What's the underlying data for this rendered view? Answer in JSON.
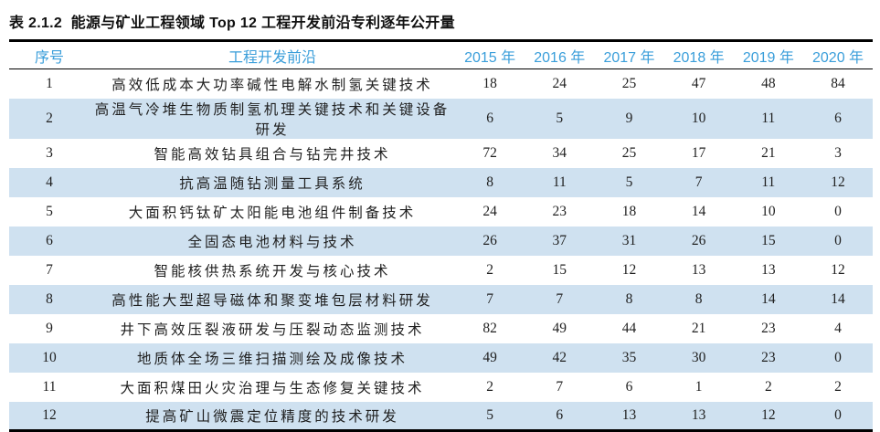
{
  "title": "表 2.1.2  能源与矿业工程领域 Top 12 工程开发前沿专利逐年公开量",
  "colors": {
    "header_text": "#3a9eda",
    "row_alt_bg": "#cfe1f0",
    "border": "#000000",
    "body_text": "#1f1f1f"
  },
  "table": {
    "headers": [
      "序号",
      "工程开发前沿",
      "2015 年",
      "2016 年",
      "2017 年",
      "2018 年",
      "2019 年",
      "2020 年"
    ],
    "rows": [
      {
        "no": "1",
        "frontier": "高效低成本大功率碱性电解水制氢关键技术",
        "values": [
          18,
          24,
          25,
          47,
          48,
          84
        ]
      },
      {
        "no": "2",
        "frontier": "高温气冷堆生物质制氢机理关键技术和关键设备研发",
        "values": [
          6,
          5,
          9,
          10,
          11,
          6
        ]
      },
      {
        "no": "3",
        "frontier": "智能高效钻具组合与钻完井技术",
        "values": [
          72,
          34,
          25,
          17,
          21,
          3
        ]
      },
      {
        "no": "4",
        "frontier": "抗高温随钻测量工具系统",
        "values": [
          8,
          11,
          5,
          7,
          11,
          12
        ]
      },
      {
        "no": "5",
        "frontier": "大面积钙钛矿太阳能电池组件制备技术",
        "values": [
          24,
          23,
          18,
          14,
          10,
          0
        ]
      },
      {
        "no": "6",
        "frontier": "全固态电池材料与技术",
        "values": [
          26,
          37,
          31,
          26,
          15,
          0
        ]
      },
      {
        "no": "7",
        "frontier": "智能核供热系统开发与核心技术",
        "values": [
          2,
          15,
          12,
          13,
          13,
          12
        ]
      },
      {
        "no": "8",
        "frontier": "高性能大型超导磁体和聚变堆包层材料研发",
        "values": [
          7,
          7,
          8,
          8,
          14,
          14
        ]
      },
      {
        "no": "9",
        "frontier": "井下高效压裂液研发与压裂动态监测技术",
        "values": [
          82,
          49,
          44,
          21,
          23,
          4
        ]
      },
      {
        "no": "10",
        "frontier": "地质体全场三维扫描测绘及成像技术",
        "values": [
          49,
          42,
          35,
          30,
          23,
          0
        ]
      },
      {
        "no": "11",
        "frontier": "大面积煤田火灾治理与生态修复关键技术",
        "values": [
          2,
          7,
          6,
          1,
          2,
          2
        ]
      },
      {
        "no": "12",
        "frontier": "提高矿山微震定位精度的技术研发",
        "values": [
          5,
          6,
          13,
          13,
          12,
          0
        ]
      }
    ]
  }
}
